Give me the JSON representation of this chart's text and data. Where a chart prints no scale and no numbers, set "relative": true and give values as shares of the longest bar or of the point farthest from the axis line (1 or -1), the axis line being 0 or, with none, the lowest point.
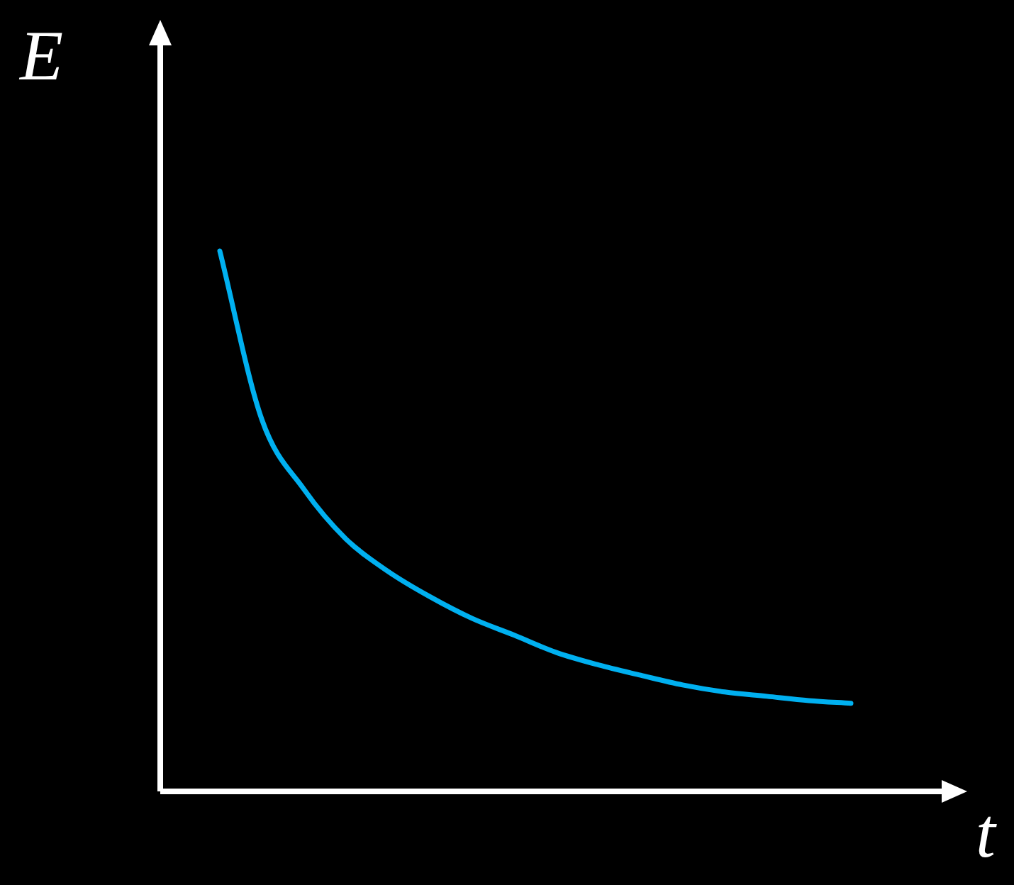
{
  "chart_data": {
    "type": "line",
    "relative": true,
    "xlabel": "t",
    "ylabel": "E⃗",
    "categories": [
      null,
      null,
      null,
      null,
      null,
      null,
      null,
      null,
      null,
      null,
      null,
      null,
      null,
      null,
      null,
      null
    ],
    "series": [
      {
        "color": "#00b0f0",
        "values": [
          1,
          0.688,
          0.559,
          0.467,
          0.407,
          0.36,
          0.32,
          0.289,
          0.257,
          0.234,
          0.215,
          0.197,
          0.184,
          0.176,
          0.168,
          0.163
        ]
      }
    ],
    "legend": false
  }
}
